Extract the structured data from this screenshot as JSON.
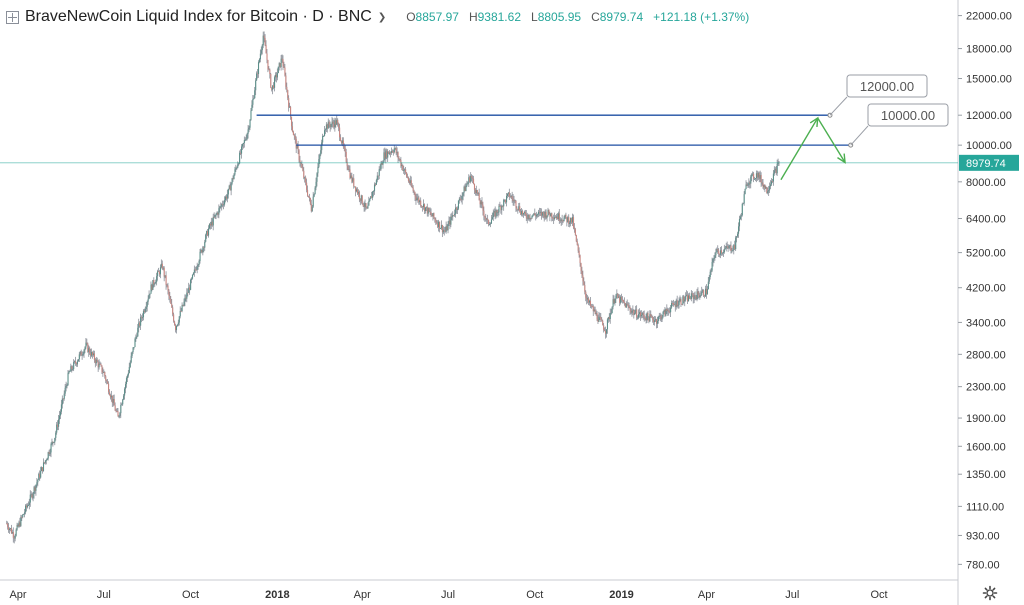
{
  "header": {
    "symbol": "BraveNewCoin Liquid Index for Bitcoin · D · BNC",
    "ohlc": [
      {
        "key": "O",
        "value": "8857.97"
      },
      {
        "key": "H",
        "value": "9381.62"
      },
      {
        "key": "L",
        "value": "8805.95"
      },
      {
        "key": "C",
        "value": "8979.74"
      }
    ],
    "change": "+121.18 (+1.37%)"
  },
  "colors": {
    "up": "#26a69a",
    "down": "#ef5350",
    "candle": "#6e7480",
    "level_line": "#1e4fa3",
    "last_price": "#26a69a",
    "arrow": "#4caf50"
  },
  "chart_data": {
    "type": "line",
    "title": "BraveNewCoin Liquid Index for Bitcoin",
    "scale": "log",
    "ylim": [
      740,
      22900
    ],
    "y_ticks": [
      "22000.00",
      "18000.00",
      "15000.00",
      "12000.00",
      "10000.00",
      "8000.00",
      "6400.00",
      "5200.00",
      "4200.00",
      "3400.00",
      "2800.00",
      "2300.00",
      "1900.00",
      "1600.00",
      "1350.00",
      "1110.00",
      "930.00",
      "780.00"
    ],
    "x_ticks": [
      "Apr",
      "Jul",
      "Oct",
      "2018",
      "Apr",
      "Jul",
      "Oct",
      "2019",
      "Apr",
      "Jul",
      "Oct"
    ],
    "x_tick_dates": [
      "2017-04-01",
      "2017-07-01",
      "2017-10-01",
      "2018-01-01",
      "2018-04-01",
      "2018-07-01",
      "2018-10-01",
      "2019-01-01",
      "2019-04-01",
      "2019-07-01",
      "2019-10-01"
    ],
    "price_path": [
      [
        "2017-03-20",
        1000
      ],
      [
        "2017-03-28",
        930
      ],
      [
        "2017-04-15",
        1180
      ],
      [
        "2017-05-10",
        1700
      ],
      [
        "2017-05-25",
        2500
      ],
      [
        "2017-06-12",
        2950
      ],
      [
        "2017-07-01",
        2500
      ],
      [
        "2017-07-16",
        1900
      ],
      [
        "2017-08-05",
        3200
      ],
      [
        "2017-08-20",
        4200
      ],
      [
        "2017-09-01",
        4800
      ],
      [
        "2017-09-15",
        3300
      ],
      [
        "2017-10-01",
        4300
      ],
      [
        "2017-10-20",
        6000
      ],
      [
        "2017-11-10",
        7500
      ],
      [
        "2017-12-01",
        11000
      ],
      [
        "2017-12-17",
        19500
      ],
      [
        "2017-12-26",
        14000
      ],
      [
        "2018-01-06",
        17000
      ],
      [
        "2018-01-17",
        11000
      ],
      [
        "2018-02-06",
        6800
      ],
      [
        "2018-02-20",
        11200
      ],
      [
        "2018-03-05",
        11500
      ],
      [
        "2018-03-20",
        8200
      ],
      [
        "2018-04-06",
        6700
      ],
      [
        "2018-04-24",
        9400
      ],
      [
        "2018-05-05",
        9800
      ],
      [
        "2018-05-28",
        7300
      ],
      [
        "2018-06-28",
        5900
      ],
      [
        "2018-07-25",
        8300
      ],
      [
        "2018-08-12",
        6200
      ],
      [
        "2018-09-04",
        7400
      ],
      [
        "2018-09-20",
        6500
      ],
      [
        "2018-10-15",
        6600
      ],
      [
        "2018-11-10",
        6300
      ],
      [
        "2018-11-25",
        3900
      ],
      [
        "2018-12-15",
        3250
      ],
      [
        "2018-12-25",
        4000
      ],
      [
        "2019-01-15",
        3600
      ],
      [
        "2019-02-07",
        3450
      ],
      [
        "2019-03-01",
        3850
      ],
      [
        "2019-04-01",
        4100
      ],
      [
        "2019-04-10",
        5200
      ],
      [
        "2019-05-01",
        5400
      ],
      [
        "2019-05-14",
        8000
      ],
      [
        "2019-05-25",
        8400
      ],
      [
        "2019-06-04",
        7600
      ],
      [
        "2019-06-17",
        8979.74
      ]
    ],
    "levels": [
      {
        "value": 12000,
        "label": "12000.00",
        "from": "2017-12-10",
        "to": "2019-08-10"
      },
      {
        "value": 10000,
        "label": "10000.00",
        "from": "2018-01-21",
        "to": "2019-09-01"
      }
    ],
    "last_price": {
      "value": 8979.74,
      "label": "8979.74"
    },
    "projection": [
      [
        "2019-06-19",
        8100
      ],
      [
        "2019-07-28",
        11800
      ],
      [
        "2019-08-26",
        9000
      ]
    ]
  }
}
